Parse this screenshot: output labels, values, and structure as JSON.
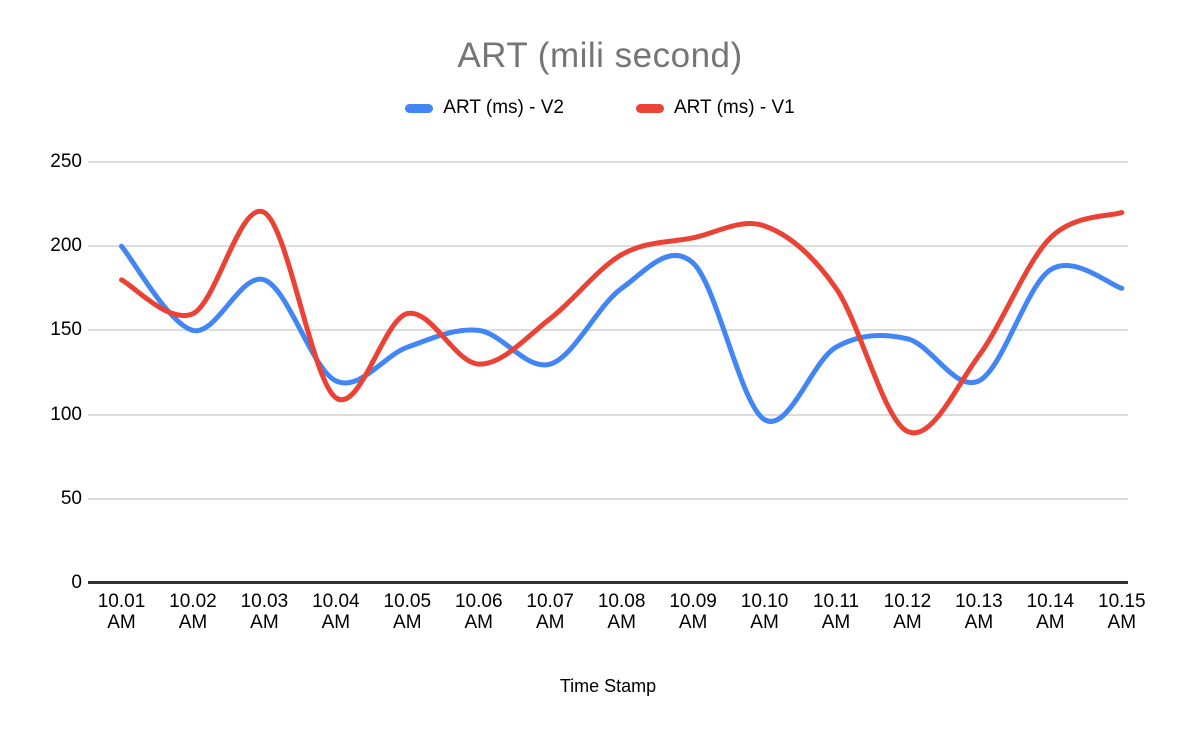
{
  "title": "ART (mili second)",
  "x_axis_title": "Time Stamp",
  "colors": {
    "series_v2": "#4285F4",
    "series_v1": "#EA4335",
    "title_text": "#757575",
    "axis_text": "#000000",
    "gridline": "#dcdcdc",
    "baseline": "#333333",
    "background": "#ffffff"
  },
  "chart_data": {
    "type": "line",
    "smooth": true,
    "title": "ART (mili second)",
    "xlabel": "Time Stamp",
    "ylabel": "",
    "categories": [
      "10.01 AM",
      "10.02 AM",
      "10.03 AM",
      "10.04 AM",
      "10.05 AM",
      "10.06 AM",
      "10.07 AM",
      "10.08 AM",
      "10.09 AM",
      "10.10 AM",
      "10.11 AM",
      "10.12 AM",
      "10.13 AM",
      "10.14 AM",
      "10.15 AM"
    ],
    "series": [
      {
        "name": "ART (ms) - V2",
        "color": "#4285F4",
        "values": [
          200,
          150,
          180,
          120,
          140,
          150,
          130,
          175,
          190,
          97,
          140,
          145,
          120,
          186,
          175
        ]
      },
      {
        "name": "ART (ms) - V1",
        "color": "#EA4335",
        "values": [
          180,
          160,
          220,
          110,
          160,
          130,
          157,
          195,
          205,
          212,
          175,
          90,
          135,
          205,
          220
        ]
      }
    ],
    "y_ticks": [
      0,
      50,
      100,
      150,
      200,
      250
    ],
    "ylim": [
      0,
      250
    ],
    "grid": true,
    "legend_position": "top"
  }
}
